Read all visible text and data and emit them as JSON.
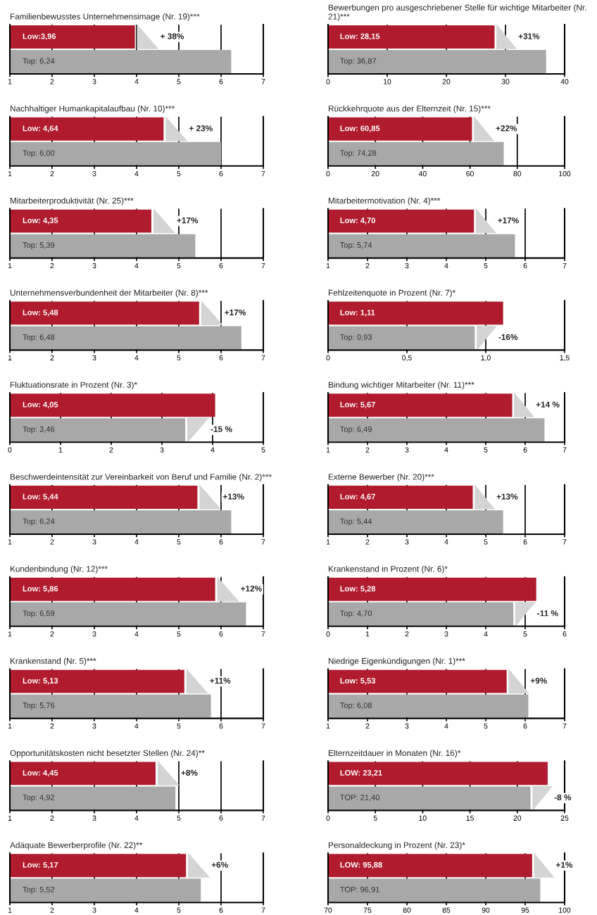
{
  "chart_data": [
    {
      "type": "bar",
      "orientation": "horizontal",
      "title": "Familienbewusstes Unternehmensimage (Nr. 19)***",
      "categories": [
        null,
        null
      ],
      "values": [
        3.96,
        6.24
      ],
      "colors": [
        "#b01c2e",
        "#a8a8a8"
      ],
      "value_labels": [
        "Low:3,96",
        "Top: 6,24"
      ],
      "annotations": [
        "+ 38%"
      ],
      "xlim": [
        1,
        7
      ],
      "xticks": [
        1,
        2,
        3,
        4,
        5,
        6,
        7
      ],
      "grid": "x"
    },
    {
      "type": "bar",
      "orientation": "horizontal",
      "title": "Bewerbungen pro ausgeschriebener Stelle für wichtige Mitarbeiter (Nr. 21)***",
      "categories": [
        null,
        null
      ],
      "values": [
        28.15,
        36.87
      ],
      "colors": [
        "#b01c2e",
        "#a8a8a8"
      ],
      "value_labels": [
        "Low: 28,15",
        "Top: 36,87"
      ],
      "annotations": [
        "+31%"
      ],
      "xlim": [
        0,
        40
      ],
      "xticks": [
        0,
        10,
        20,
        30,
        40
      ],
      "grid": "x"
    },
    {
      "type": "bar",
      "orientation": "horizontal",
      "title": "Nachhaltiger Humankapitalaufbau (Nr. 10)***",
      "categories": [
        null,
        null
      ],
      "values": [
        4.64,
        6.0
      ],
      "colors": [
        "#b01c2e",
        "#a8a8a8"
      ],
      "value_labels": [
        "Low: 4,64",
        "Top: 6,00"
      ],
      "annotations": [
        "+ 23%"
      ],
      "xlim": [
        1,
        7
      ],
      "xticks": [
        1,
        2,
        3,
        4,
        5,
        6,
        7
      ],
      "grid": "x"
    },
    {
      "type": "bar",
      "orientation": "horizontal",
      "title": "Rückkehrquote aus der Elternzeit (Nr. 15)***",
      "categories": [
        null,
        null
      ],
      "values": [
        60.85,
        74.28
      ],
      "colors": [
        "#b01c2e",
        "#a8a8a8"
      ],
      "value_labels": [
        "Low: 60,85",
        "Top: 74,28"
      ],
      "annotations": [
        "+22%"
      ],
      "xlim": [
        0,
        100
      ],
      "xticks": [
        0,
        20,
        40,
        60,
        80,
        100
      ],
      "grid": "x"
    },
    {
      "type": "bar",
      "orientation": "horizontal",
      "title": "Mitarbeiterproduktivität (Nr. 25)***",
      "categories": [
        null,
        null
      ],
      "values": [
        4.35,
        5.39
      ],
      "colors": [
        "#b01c2e",
        "#a8a8a8"
      ],
      "value_labels": [
        "Low: 4,35",
        "Top: 5,39"
      ],
      "annotations": [
        "+17%"
      ],
      "xlim": [
        1,
        7
      ],
      "xticks": [
        1,
        2,
        3,
        4,
        5,
        6,
        7
      ],
      "grid": "x"
    },
    {
      "type": "bar",
      "orientation": "horizontal",
      "title": "Mitarbeitermotivation (Nr. 4)***",
      "categories": [
        null,
        null
      ],
      "values": [
        4.7,
        5.74
      ],
      "colors": [
        "#b01c2e",
        "#a8a8a8"
      ],
      "value_labels": [
        "Low: 4,70",
        "Top: 5,74"
      ],
      "annotations": [
        "+17%"
      ],
      "xlim": [
        1,
        7
      ],
      "xticks": [
        1,
        2,
        3,
        4,
        5,
        6,
        7
      ],
      "grid": "x"
    },
    {
      "type": "bar",
      "orientation": "horizontal",
      "title": "Unternehmensverbundenheit der Mitarbeiter (Nr. 8)***",
      "categories": [
        null,
        null
      ],
      "values": [
        5.48,
        6.48
      ],
      "colors": [
        "#b01c2e",
        "#a8a8a8"
      ],
      "value_labels": [
        "Low: 5,48",
        "Top: 6,48"
      ],
      "annotations": [
        "+17%"
      ],
      "xlim": [
        1,
        7
      ],
      "xticks": [
        1,
        2,
        3,
        4,
        5,
        6,
        7
      ],
      "grid": "x"
    },
    {
      "type": "bar",
      "orientation": "horizontal",
      "title": "Fehlzeitenquote in Prozent (Nr. 7)*",
      "categories": [
        null,
        null
      ],
      "values": [
        1.11,
        0.93
      ],
      "colors": [
        "#b01c2e",
        "#a8a8a8"
      ],
      "value_labels": [
        "Low: 1,11",
        "Top: 0,93"
      ],
      "annotations": [
        "-16%"
      ],
      "xlim": [
        0,
        1.5
      ],
      "xticks": [
        0,
        {
          "value": 0.5,
          "label": "0,5"
        },
        {
          "value": 1.0,
          "label": "1,0"
        },
        {
          "value": 1.5,
          "label": "1,5"
        }
      ],
      "grid": "x"
    },
    {
      "type": "bar",
      "orientation": "horizontal",
      "title": "Fluktuationsrate in Prozent (Nr. 3)*",
      "categories": [
        null,
        null
      ],
      "values": [
        4.05,
        3.46
      ],
      "colors": [
        "#b01c2e",
        "#a8a8a8"
      ],
      "value_labels": [
        "Low: 4,05",
        "Top: 3,46"
      ],
      "annotations": [
        "-15 %"
      ],
      "xlim": [
        0,
        5
      ],
      "xticks": [
        0,
        1,
        2,
        3,
        4,
        5
      ],
      "grid": "x"
    },
    {
      "type": "bar",
      "orientation": "horizontal",
      "title": "Bindung wichtiger Mitarbeiter (Nr. 11)***",
      "categories": [
        null,
        null
      ],
      "values": [
        5.67,
        6.49
      ],
      "colors": [
        "#b01c2e",
        "#a8a8a8"
      ],
      "value_labels": [
        "Low: 5,67",
        "Top: 6,49"
      ],
      "annotations": [
        "+14 %"
      ],
      "xlim": [
        1,
        7
      ],
      "xticks": [
        1,
        2,
        3,
        4,
        5,
        6,
        7
      ],
      "grid": "x"
    },
    {
      "type": "bar",
      "orientation": "horizontal",
      "title": "Beschwerdeintensität zur Vereinbarkeit von Beruf und Familie (Nr. 2)***",
      "categories": [
        null,
        null
      ],
      "values": [
        5.44,
        6.24
      ],
      "colors": [
        "#b01c2e",
        "#a8a8a8"
      ],
      "value_labels": [
        "Low: 5,44",
        "Top: 6,24"
      ],
      "annotations": [
        "+13%"
      ],
      "xlim": [
        1,
        7
      ],
      "xticks": [
        1,
        2,
        3,
        4,
        5,
        6,
        7
      ],
      "grid": "x"
    },
    {
      "type": "bar",
      "orientation": "horizontal",
      "title": "Externe Bewerber (Nr. 20)***",
      "categories": [
        null,
        null
      ],
      "values": [
        4.67,
        5.44
      ],
      "colors": [
        "#b01c2e",
        "#a8a8a8"
      ],
      "value_labels": [
        "Low: 4,67",
        "Top: 5,44"
      ],
      "annotations": [
        "+13%"
      ],
      "xlim": [
        1,
        7
      ],
      "xticks": [
        1,
        2,
        3,
        4,
        5,
        6,
        7
      ],
      "grid": "x"
    },
    {
      "type": "bar",
      "orientation": "horizontal",
      "title": "Kundenbindung (Nr. 12)***",
      "categories": [
        null,
        null
      ],
      "values": [
        5.86,
        6.59
      ],
      "colors": [
        "#b01c2e",
        "#a8a8a8"
      ],
      "value_labels": [
        "Low: 5,86",
        "Top: 6,59"
      ],
      "annotations": [
        "+12%"
      ],
      "xlim": [
        1,
        7
      ],
      "xticks": [
        1,
        2,
        3,
        4,
        5,
        6,
        7
      ],
      "grid": "x"
    },
    {
      "type": "bar",
      "orientation": "horizontal",
      "title": "Krankenstand in Prozent (Nr. 6)*",
      "categories": [
        null,
        null
      ],
      "values": [
        5.28,
        4.7
      ],
      "colors": [
        "#b01c2e",
        "#a8a8a8"
      ],
      "value_labels": [
        "Low: 5,28",
        "Top: 4,70"
      ],
      "annotations": [
        "-11 %"
      ],
      "xlim": [
        0,
        6
      ],
      "xticks": [
        0,
        1,
        2,
        3,
        4,
        5,
        6
      ],
      "grid": "x"
    },
    {
      "type": "bar",
      "orientation": "horizontal",
      "title": "Krankenstand (Nr. 5)***",
      "categories": [
        null,
        null
      ],
      "values": [
        5.13,
        5.76
      ],
      "colors": [
        "#b01c2e",
        "#a8a8a8"
      ],
      "value_labels": [
        "Low: 5,13",
        "Top: 5,76"
      ],
      "annotations": [
        "+11%"
      ],
      "xlim": [
        1,
        7
      ],
      "xticks": [
        1,
        2,
        3,
        4,
        5,
        6,
        7
      ],
      "grid": "x"
    },
    {
      "type": "bar",
      "orientation": "horizontal",
      "title": "Niedrige Eigenkündigungen (Nr. 1)***",
      "categories": [
        null,
        null
      ],
      "values": [
        5.53,
        6.08
      ],
      "colors": [
        "#b01c2e",
        "#a8a8a8"
      ],
      "value_labels": [
        "Low: 5,53",
        "Top: 6,08"
      ],
      "annotations": [
        "+9%"
      ],
      "xlim": [
        1,
        7
      ],
      "xticks": [
        1,
        2,
        3,
        4,
        5,
        6,
        7
      ],
      "grid": "x"
    },
    {
      "type": "bar",
      "orientation": "horizontal",
      "title": "Opportunitätskosten nicht besetzter Stellen (Nr. 24)**",
      "categories": [
        null,
        null
      ],
      "values": [
        4.45,
        4.92
      ],
      "colors": [
        "#b01c2e",
        "#a8a8a8"
      ],
      "value_labels": [
        "Low: 4,45",
        "Top: 4,92"
      ],
      "annotations": [
        "+8%"
      ],
      "xlim": [
        1,
        7
      ],
      "xticks": [
        1,
        2,
        3,
        4,
        5,
        6,
        7
      ],
      "grid": "x"
    },
    {
      "type": "bar",
      "orientation": "horizontal",
      "title": "Elternzeitdauer in Monaten (Nr. 16)*",
      "categories": [
        null,
        null
      ],
      "values": [
        23.21,
        21.4
      ],
      "colors": [
        "#b01c2e",
        "#a8a8a8"
      ],
      "value_labels": [
        "LOW: 23,21",
        "TOP: 21,40"
      ],
      "annotations": [
        "-8 %"
      ],
      "xlim": [
        0,
        25
      ],
      "xticks": [
        0,
        5,
        10,
        15,
        20,
        25
      ],
      "grid": "x"
    },
    {
      "type": "bar",
      "orientation": "horizontal",
      "title": "Adäquate Bewerberprofile (Nr. 22)**",
      "categories": [
        null,
        null
      ],
      "values": [
        5.17,
        5.52
      ],
      "colors": [
        "#b01c2e",
        "#a8a8a8"
      ],
      "value_labels": [
        "Low: 5,17",
        "Top: 5,52"
      ],
      "annotations": [
        "+6%"
      ],
      "xlim": [
        1,
        7
      ],
      "xticks": [
        1,
        2,
        3,
        4,
        5,
        6,
        7
      ],
      "grid": "x"
    },
    {
      "type": "bar",
      "orientation": "horizontal",
      "title": "Personaldeckung in Prozent (Nr. 23)*",
      "categories": [
        null,
        null
      ],
      "values": [
        95.88,
        96.91
      ],
      "colors": [
        "#b01c2e",
        "#a8a8a8"
      ],
      "value_labels": [
        "LOW: 95,88",
        "TOP: 96,91"
      ],
      "annotations": [
        "+1%"
      ],
      "xlim": [
        70,
        100
      ],
      "xticks": [
        70,
        75,
        80,
        85,
        90,
        95,
        100
      ],
      "grid": "x"
    }
  ]
}
